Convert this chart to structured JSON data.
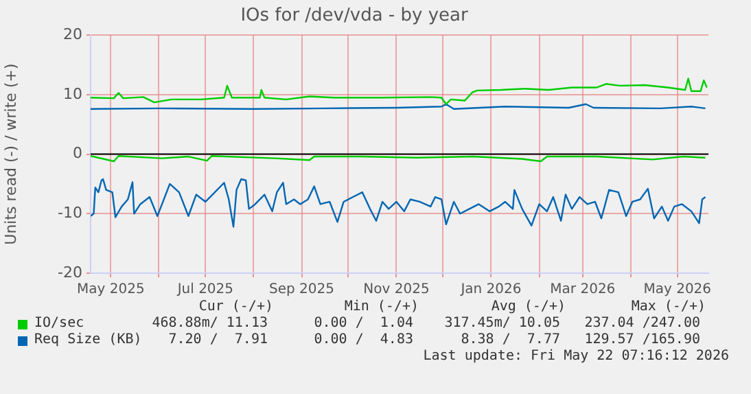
{
  "chart_data": {
    "type": "line",
    "title": "IOs for /dev/vda - by year",
    "ylabel": "Units read (-) / write (+)",
    "xlim": [
      "2025-04-18",
      "2026-05-21"
    ],
    "xticks": [
      {
        "value": "2025-05-01",
        "label": "May 2025"
      },
      {
        "value": "2025-06-01",
        "label": null
      },
      {
        "value": "2025-07-01",
        "label": "Jul 2025"
      },
      {
        "value": "2025-08-01",
        "label": null
      },
      {
        "value": "2025-09-01",
        "label": "Sep 2025"
      },
      {
        "value": "2025-10-01",
        "label": null
      },
      {
        "value": "2025-11-01",
        "label": "Nov 2025"
      },
      {
        "value": "2025-12-01",
        "label": null
      },
      {
        "value": "2026-01-01",
        "label": "Jan 2026"
      },
      {
        "value": "2026-02-01",
        "label": null
      },
      {
        "value": "2026-03-01",
        "label": "Mar 2026"
      },
      {
        "value": "2026-04-01",
        "label": null
      },
      {
        "value": "2026-05-01",
        "label": "May 2026"
      }
    ],
    "ylim": [
      -20,
      20
    ],
    "yticks": [
      -20,
      -10,
      0,
      10,
      20
    ],
    "grid": true,
    "legend": "bottom",
    "marker": "none",
    "line_style": "solid",
    "ref_lines": [
      {
        "axis": "y",
        "value": 0,
        "color": "#000000"
      }
    ],
    "series": [
      {
        "name": "IO/sec",
        "color": "#00cc00",
        "x": [
          "2025-04-18",
          "2025-05-03",
          "2025-05-06",
          "2025-05-09",
          "2025-05-22",
          "2025-05-29",
          "2025-06-09",
          "2025-06-28",
          "2025-07-13",
          "2025-07-15",
          "2025-07-18",
          "2025-08-05",
          "2025-08-06",
          "2025-08-08",
          "2025-08-22",
          "2025-09-06",
          "2025-09-22",
          "2025-10-23",
          "2025-11-23",
          "2025-11-30",
          "2025-12-03",
          "2025-12-06",
          "2025-12-15",
          "2025-12-20",
          "2025-12-23",
          "2026-01-07",
          "2026-01-23",
          "2026-02-07",
          "2026-02-22",
          "2026-03-10",
          "2026-03-16",
          "2026-03-25",
          "2026-04-10",
          "2026-04-25",
          "2026-05-06",
          "2026-05-08",
          "2026-05-10",
          "2026-05-16",
          "2026-05-18",
          "2026-05-20"
        ],
        "values": [
          9.5,
          9.4,
          10.3,
          9.4,
          9.6,
          8.7,
          9.2,
          9.2,
          9.5,
          11.5,
          9.5,
          9.5,
          10.8,
          9.5,
          9.2,
          9.7,
          9.5,
          9.5,
          9.6,
          9.5,
          8.4,
          9.2,
          9.0,
          10.4,
          10.7,
          10.8,
          11.0,
          10.8,
          11.2,
          11.2,
          11.8,
          11.5,
          11.6,
          11.2,
          10.8,
          12.7,
          10.6,
          10.6,
          12.4,
          11.2
        ]
      },
      {
        "color": "#00cc00",
        "x": [
          "2025-04-18",
          "2025-05-03",
          "2025-05-06",
          "2025-06-03",
          "2025-06-20",
          "2025-07-02",
          "2025-07-05",
          "2025-08-15",
          "2025-09-06",
          "2025-09-09",
          "2025-10-10",
          "2025-11-14",
          "2025-12-20",
          "2026-01-21",
          "2026-02-02",
          "2026-02-06",
          "2026-03-10",
          "2026-04-15",
          "2026-05-05",
          "2026-05-19"
        ],
        "values": [
          -0.3,
          -1.2,
          -0.3,
          -0.7,
          -0.4,
          -1.1,
          -0.3,
          -0.7,
          -1.0,
          -0.4,
          -0.4,
          -0.6,
          -0.4,
          -0.8,
          -1.2,
          -0.4,
          -0.4,
          -0.9,
          -0.4,
          -0.6
        ]
      },
      {
        "name": "Req Size (KB)",
        "color": "#0066b3",
        "x": [
          "2025-04-18",
          "2025-06-01",
          "2025-08-01",
          "2025-09-15",
          "2025-11-01",
          "2025-11-30",
          "2025-12-03",
          "2025-12-08",
          "2026-01-10",
          "2026-02-20",
          "2026-03-03",
          "2026-03-08",
          "2026-04-20",
          "2026-05-10",
          "2026-05-19"
        ],
        "values": [
          7.6,
          7.7,
          7.6,
          7.7,
          7.8,
          8.0,
          8.4,
          7.6,
          8.0,
          7.8,
          8.4,
          7.8,
          7.7,
          8.0,
          7.7
        ]
      },
      {
        "color": "#0066b3",
        "x": [
          "2025-04-18",
          "2025-04-20",
          "2025-04-21",
          "2025-04-23",
          "2025-04-25",
          "2025-04-26",
          "2025-04-28",
          "2025-05-02",
          "2025-05-04",
          "2025-05-08",
          "2025-05-12",
          "2025-05-15",
          "2025-05-16",
          "2025-05-20",
          "2025-05-26",
          "2025-05-31",
          "2025-06-03",
          "2025-06-08",
          "2025-06-14",
          "2025-06-20",
          "2025-06-25",
          "2025-07-01",
          "2025-07-07",
          "2025-07-13",
          "2025-07-16",
          "2025-07-19",
          "2025-07-21",
          "2025-07-24",
          "2025-07-27",
          "2025-07-29",
          "2025-08-02",
          "2025-08-08",
          "2025-08-13",
          "2025-08-16",
          "2025-08-20",
          "2025-08-22",
          "2025-08-27",
          "2025-08-31",
          "2025-09-05",
          "2025-09-09",
          "2025-09-13",
          "2025-09-19",
          "2025-09-24",
          "2025-09-28",
          "2025-10-04",
          "2025-10-10",
          "2025-10-15",
          "2025-10-19",
          "2025-10-23",
          "2025-10-27",
          "2025-11-01",
          "2025-11-06",
          "2025-11-10",
          "2025-11-16",
          "2025-11-23",
          "2025-11-26",
          "2025-11-30",
          "2025-12-03",
          "2025-12-08",
          "2025-12-12",
          "2025-12-18",
          "2025-12-24",
          "2025-12-31",
          "2026-01-06",
          "2026-01-10",
          "2026-01-15",
          "2026-01-16",
          "2026-01-21",
          "2026-01-27",
          "2026-02-01",
          "2026-02-06",
          "2026-02-10",
          "2026-02-15",
          "2026-02-18",
          "2026-02-22",
          "2026-02-27",
          "2026-03-04",
          "2026-03-09",
          "2026-03-13",
          "2026-03-18",
          "2026-03-24",
          "2026-03-29",
          "2026-04-02",
          "2026-04-07",
          "2026-04-12",
          "2026-04-16",
          "2026-04-21",
          "2026-04-25",
          "2026-04-29",
          "2026-05-04",
          "2026-05-10",
          "2026-05-15",
          "2026-05-17",
          "2026-05-19"
        ],
        "values": [
          -10.4,
          -10,
          -5.6,
          -6.4,
          -4.4,
          -4.2,
          -6,
          -6.4,
          -10.6,
          -8.8,
          -7.6,
          -4.7,
          -10,
          -8.4,
          -7.2,
          -10.4,
          -8.4,
          -5,
          -6.4,
          -10.4,
          -6.8,
          -8,
          -6.4,
          -4.8,
          -7.6,
          -12.2,
          -6,
          -4.2,
          -4.4,
          -9.2,
          -8.4,
          -6.8,
          -9.6,
          -6.4,
          -4.8,
          -8.4,
          -7.6,
          -8.4,
          -7.6,
          -5.4,
          -8.4,
          -8,
          -11.4,
          -8,
          -7.2,
          -6.4,
          -9.2,
          -11.2,
          -8,
          -9.2,
          -8,
          -9.6,
          -7.6,
          -8,
          -8.8,
          -7.2,
          -7.6,
          -11.8,
          -8,
          -10,
          -9.2,
          -8.4,
          -9.6,
          -8.8,
          -8,
          -9.2,
          -6,
          -9.2,
          -12,
          -8.4,
          -9.6,
          -7.2,
          -11.2,
          -6.8,
          -9.2,
          -7.2,
          -8.4,
          -8,
          -10.8,
          -6,
          -6.4,
          -10.4,
          -8,
          -7.6,
          -5.8,
          -10.8,
          -8.8,
          -11.2,
          -8.8,
          -8.4,
          -9.6,
          -11.6,
          -7.6,
          -7.2
        ]
      }
    ],
    "annotations": [
      "Cur (-/+)",
      "Min (-/+)",
      "Avg (-/+)",
      "Max (-/+)",
      "468.88m/ 11.13",
      "0.00 /  1.04",
      "317.45m/ 10.05",
      "237.04 /247.00",
      "7.20 /  7.91",
      "0.00 /  4.83",
      "8.38 /  7.77",
      "129.57 /165.90",
      "Last update: Fri May 22 07:16:12 2026"
    ]
  }
}
